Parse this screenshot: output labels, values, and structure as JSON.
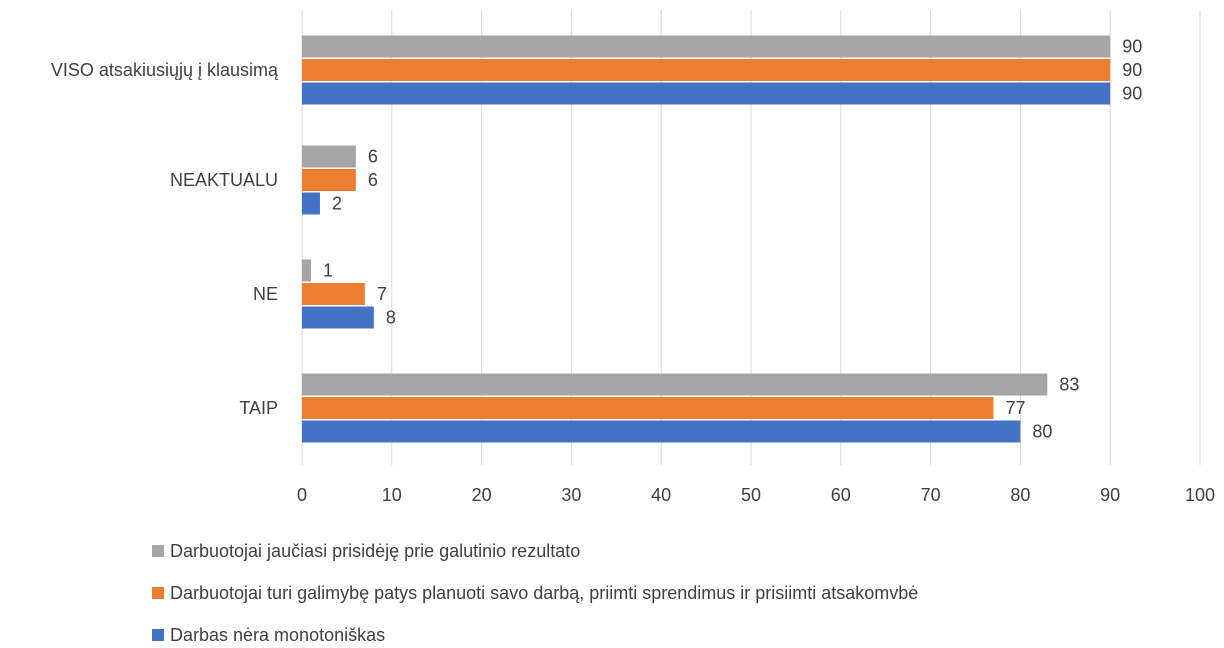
{
  "chart_data": {
    "type": "bar",
    "orientation": "horizontal",
    "categories": [
      "VISO atsakiusiųjų į klausimą",
      "NEAKTUALU",
      "NE",
      "TAIP"
    ],
    "series": [
      {
        "name": "Darbuotojai jaučiasi prisidėję prie galutinio rezultato",
        "color": "#a5a5a5",
        "values": [
          90,
          6,
          1,
          83
        ]
      },
      {
        "name": "Darbuotojai turi galimybę patys planuoti savo darbą, priimti sprendimus ir prisiimti atsakomvbė",
        "color": "#ed7d31",
        "values": [
          90,
          6,
          7,
          77
        ]
      },
      {
        "name": "Darbas nėra monotoniškas",
        "color": "#4472c4",
        "values": [
          90,
          2,
          8,
          80
        ]
      }
    ],
    "xlim": [
      0,
      100
    ],
    "xticks": [
      0,
      10,
      20,
      30,
      40,
      50,
      60,
      70,
      80,
      90,
      100
    ],
    "grid": true,
    "legend_position": "bottom-left",
    "title": "",
    "xlabel": "",
    "ylabel": ""
  }
}
